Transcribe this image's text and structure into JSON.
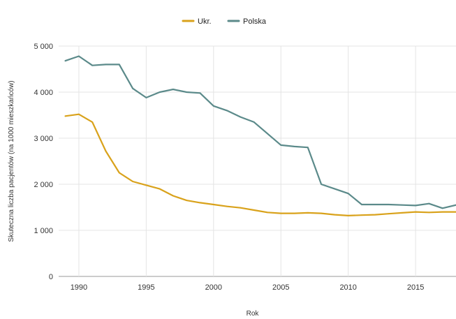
{
  "chart_data": {
    "type": "line",
    "title": "",
    "xlabel": "Rok",
    "ylabel": "Skuteczna liczba pacjentów (na 1000 mieszkańców)",
    "xlim": [
      1988.5,
      2018
    ],
    "ylim": [
      0,
      5000
    ],
    "x_ticks": [
      1990,
      1995,
      2000,
      2005,
      2010,
      2015
    ],
    "y_ticks": [
      0,
      1000,
      2000,
      3000,
      4000,
      5000
    ],
    "y_tick_labels": [
      "0",
      "1 000",
      "2 000",
      "3 000",
      "4 000",
      "5 000"
    ],
    "grid": true,
    "legend_position": "top",
    "x": [
      1989,
      1990,
      1991,
      1992,
      1993,
      1994,
      1995,
      1996,
      1997,
      1998,
      1999,
      2000,
      2001,
      2002,
      2003,
      2004,
      2005,
      2006,
      2007,
      2008,
      2009,
      2010,
      2011,
      2012,
      2013,
      2014,
      2015,
      2016,
      2017,
      2018
    ],
    "series": [
      {
        "name": "Ukr.",
        "color": "#d9a21b",
        "values": [
          3480,
          3520,
          3350,
          2720,
          2250,
          2060,
          1980,
          1900,
          1750,
          1650,
          1600,
          1560,
          1520,
          1490,
          1440,
          1390,
          1370,
          1370,
          1380,
          1370,
          1340,
          1320,
          1330,
          1340,
          1360,
          1380,
          1400,
          1390,
          1400,
          1400
        ]
      },
      {
        "name": "Polska",
        "color": "#5b8a8a",
        "values": [
          4680,
          4780,
          4580,
          4600,
          4600,
          4080,
          3880,
          4000,
          4060,
          4000,
          3980,
          3700,
          3600,
          3460,
          3350,
          3100,
          2850,
          2820,
          2800,
          2000,
          1900,
          1800,
          1560,
          1560,
          1560,
          1550,
          1540,
          1580,
          1480,
          1550
        ]
      }
    ]
  }
}
